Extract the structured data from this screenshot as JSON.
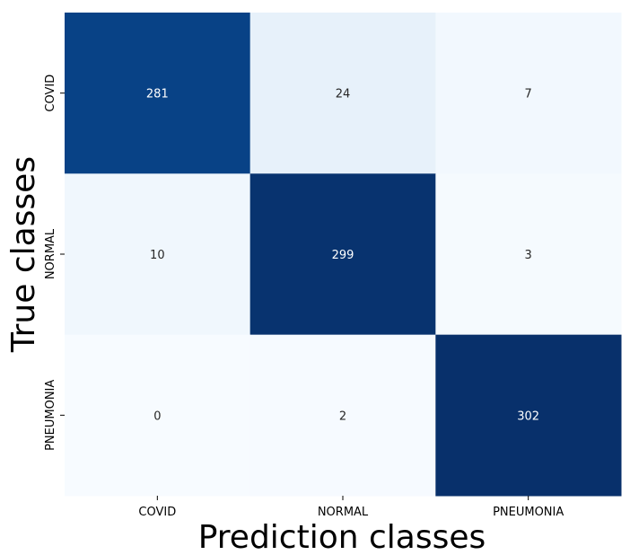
{
  "chart_data": {
    "type": "heatmap",
    "title": "",
    "xlabel": "Prediction classes",
    "ylabel": "True classes",
    "x_categories": [
      "COVID",
      "NORMAL",
      "PNEUMONIA"
    ],
    "y_categories": [
      "COVID",
      "NORMAL",
      "PNEUMONIA"
    ],
    "values": [
      [
        281,
        24,
        7
      ],
      [
        10,
        299,
        3
      ],
      [
        0,
        2,
        302
      ]
    ],
    "colormap": "Blues",
    "color_low": "#f7fbff",
    "color_high": "#08306b",
    "colorbar": false,
    "grid": false
  }
}
